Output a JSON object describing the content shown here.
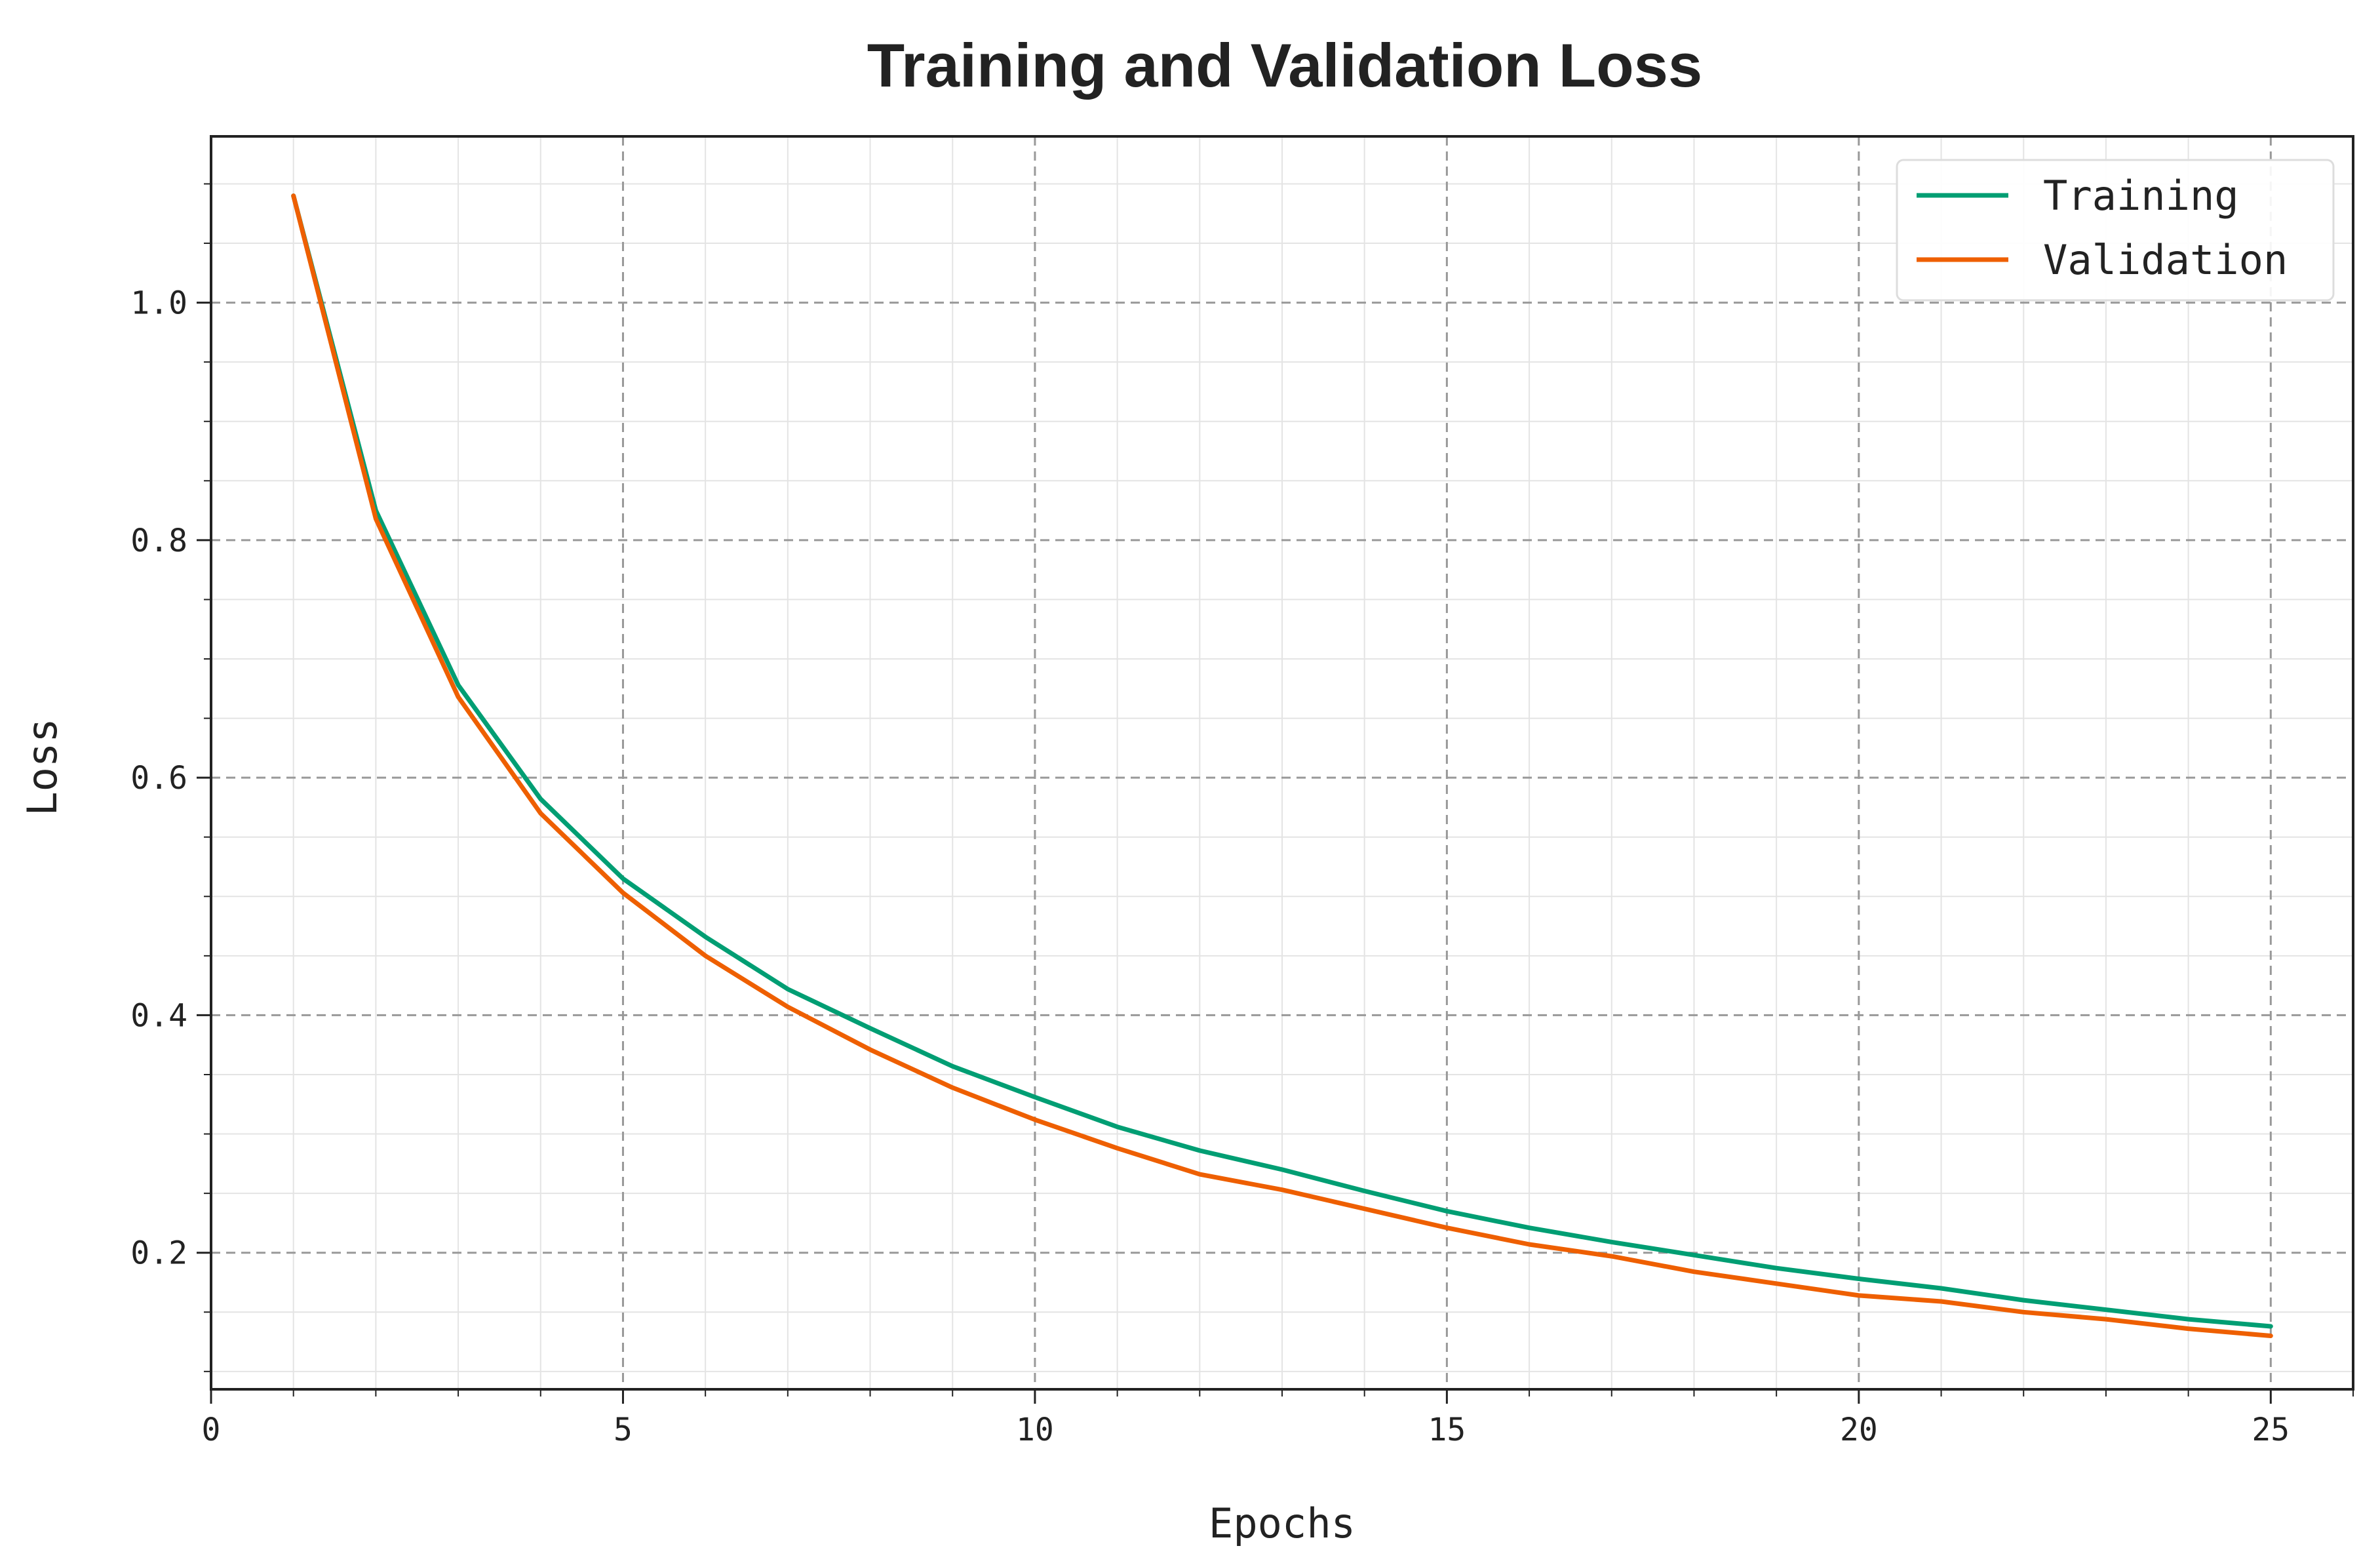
{
  "chart_data": {
    "type": "line",
    "title": "Training and Validation Loss",
    "xlabel": "Epochs",
    "ylabel": "Loss",
    "xlim": [
      0,
      26
    ],
    "ylim": [
      0.085,
      1.14
    ],
    "xticks": [
      0,
      5,
      10,
      15,
      20,
      25
    ],
    "yticks": [
      0.2,
      0.4,
      0.6,
      0.8,
      1.0
    ],
    "xtick_labels": [
      "0",
      "5",
      "10",
      "15",
      "20",
      "25"
    ],
    "ytick_labels": [
      "0.2",
      "0.4",
      "0.6",
      "0.8",
      "1.0"
    ],
    "grid": true,
    "minor_grid": true,
    "legend_position": "top-right",
    "x": [
      1,
      2,
      3,
      4,
      5,
      6,
      7,
      8,
      9,
      10,
      11,
      12,
      13,
      14,
      15,
      16,
      17,
      18,
      19,
      20,
      21,
      22,
      23,
      24,
      25
    ],
    "series": [
      {
        "name": "Training",
        "color": "#009E73",
        "values": [
          1.09,
          0.825,
          0.678,
          0.582,
          0.515,
          0.466,
          0.422,
          0.389,
          0.357,
          0.331,
          0.306,
          0.286,
          0.27,
          0.252,
          0.235,
          0.221,
          0.209,
          0.198,
          0.187,
          0.178,
          0.17,
          0.16,
          0.152,
          0.144,
          0.138
        ]
      },
      {
        "name": "Validation",
        "color": "#EE5F00",
        "values": [
          1.09,
          0.818,
          0.668,
          0.57,
          0.503,
          0.45,
          0.407,
          0.371,
          0.339,
          0.312,
          0.288,
          0.266,
          0.253,
          0.237,
          0.221,
          0.207,
          0.197,
          0.184,
          0.174,
          0.164,
          0.159,
          0.15,
          0.144,
          0.136,
          0.13
        ]
      }
    ]
  }
}
